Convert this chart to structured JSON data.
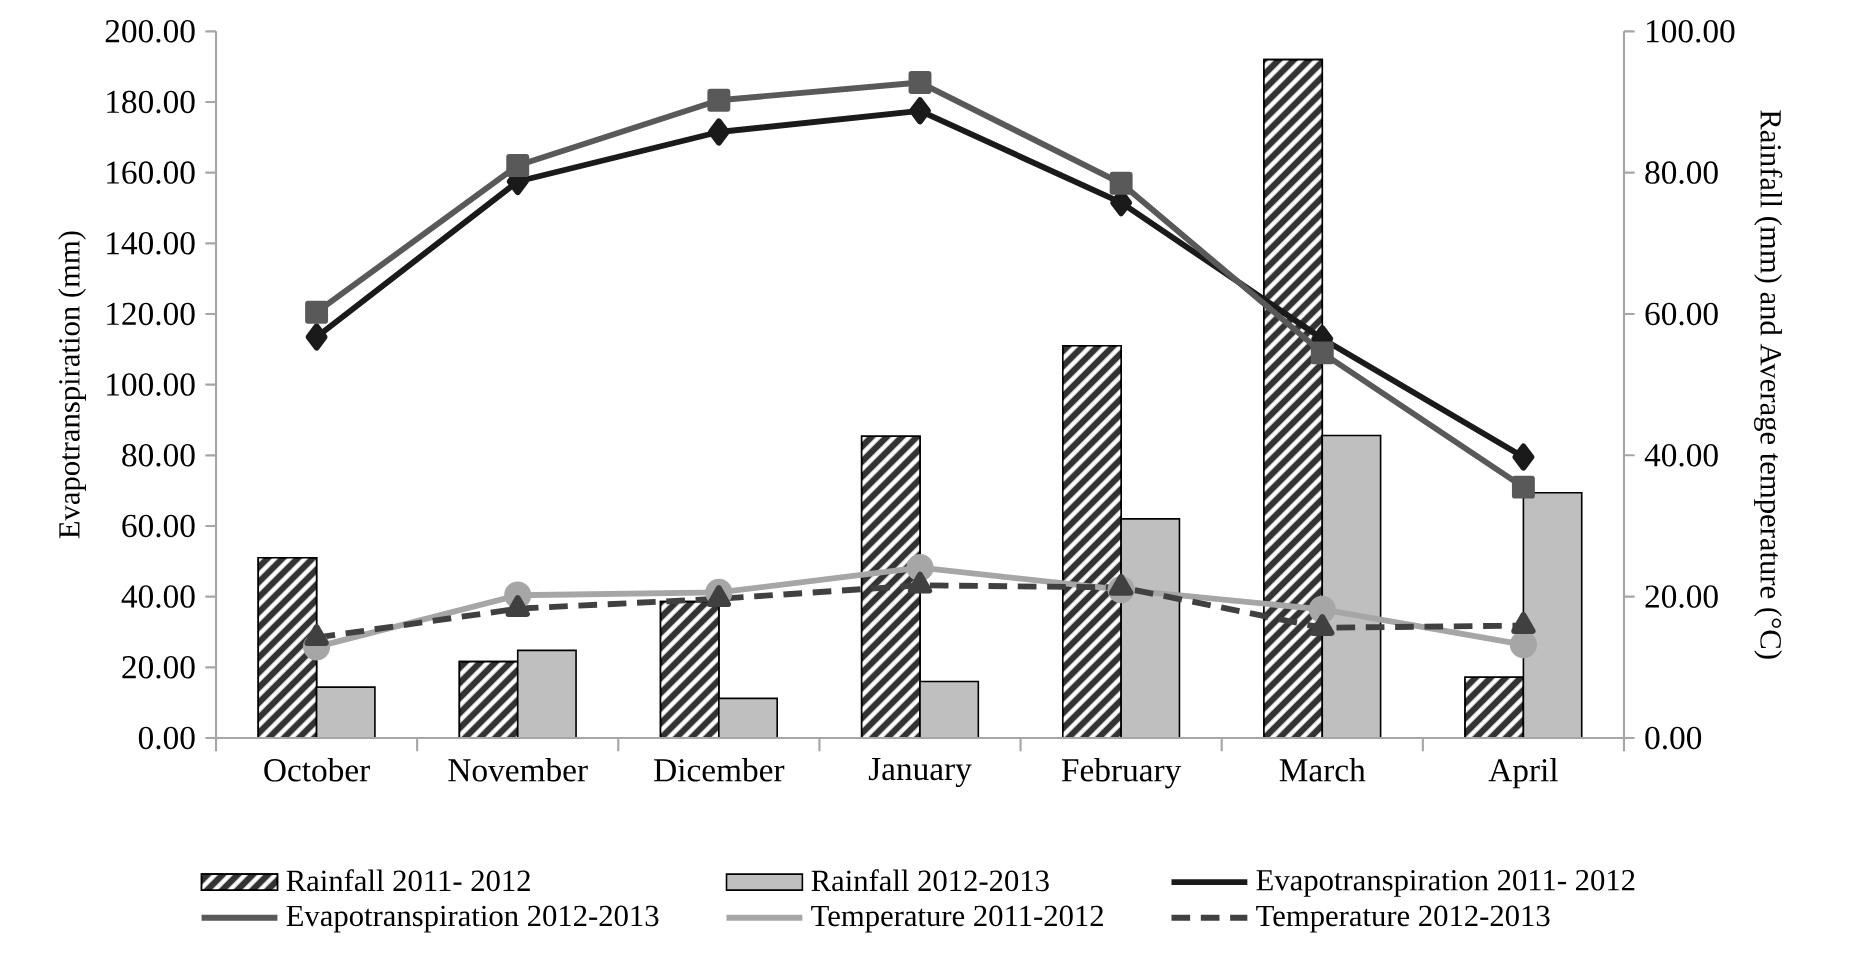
{
  "chart_data": {
    "type": "bar",
    "ylabel": "Evapotranspiration (mm)",
    "y2label": "Rainfall (mm) and Average temperature (°C)",
    "categories": [
      "October",
      "November",
      "Dicember",
      "January",
      "February",
      "March",
      "April"
    ],
    "ylim": [
      0,
      200
    ],
    "yticks": [
      {
        "value": 0,
        "label": "0.00"
      },
      {
        "value": 20,
        "label": "20.00"
      },
      {
        "value": 40,
        "label": "40.00"
      },
      {
        "value": 60,
        "label": "60.00"
      },
      {
        "value": 80,
        "label": "80.00"
      },
      {
        "value": 100,
        "label": "100.00"
      },
      {
        "value": 120,
        "label": "120.00"
      },
      {
        "value": 140,
        "label": "140.00"
      },
      {
        "value": 160,
        "label": "160.00"
      },
      {
        "value": 180,
        "label": "180.00"
      },
      {
        "value": 200,
        "label": "200.00"
      }
    ],
    "y2lim": [
      0,
      100
    ],
    "y2ticks": [
      {
        "value": 0,
        "label": "0.00"
      },
      {
        "value": 20,
        "label": "20.00"
      },
      {
        "value": 40,
        "label": "40.00"
      },
      {
        "value": 60,
        "label": "60.00"
      },
      {
        "value": 80,
        "label": "80.00"
      },
      {
        "value": 100,
        "label": "100.00"
      }
    ],
    "grid": false,
    "legend": "bottom",
    "series": [
      {
        "name": "Rainfall 2011- 2012",
        "axis": "y2",
        "color": "#333333",
        "values": [
          25.5,
          10.8,
          19.3,
          42.7,
          55.5,
          96.0,
          8.6
        ]
      },
      {
        "name": "Rainfall 2012-2013",
        "axis": "y2",
        "color": "#bfbfbf",
        "values": [
          7.2,
          12.4,
          5.6,
          8.0,
          31.0,
          42.8,
          34.7
        ]
      },
      {
        "name": "Evapotranspiration 2011- 2012",
        "type": "line",
        "axis": "y",
        "color": "#1a1a1a",
        "marker": "diamond",
        "line_style": "solid",
        "values": [
          113.5,
          157.5,
          171.5,
          177.5,
          151.5,
          113.0,
          79.5
        ]
      },
      {
        "name": "Evapotranspiration 2012-2013",
        "type": "line",
        "axis": "y",
        "color": "#595959",
        "marker": "square",
        "line_style": "solid",
        "values": [
          120.5,
          162.0,
          180.5,
          185.5,
          157.0,
          109.0,
          71.0
        ]
      },
      {
        "name": "Temperature 2011-2012",
        "type": "line",
        "axis": "y2",
        "color": "#a6a6a6",
        "marker": "circle",
        "line_style": "solid",
        "values": [
          12.9,
          20.2,
          20.6,
          24.1,
          21.0,
          18.2,
          13.2
        ]
      },
      {
        "name": "Temperature 2012-2013",
        "type": "line",
        "axis": "y2",
        "color": "#404040",
        "marker": "triangle",
        "line_style": "dashed",
        "values": [
          14.2,
          18.3,
          19.7,
          21.6,
          21.3,
          15.6,
          15.9
        ]
      }
    ]
  }
}
